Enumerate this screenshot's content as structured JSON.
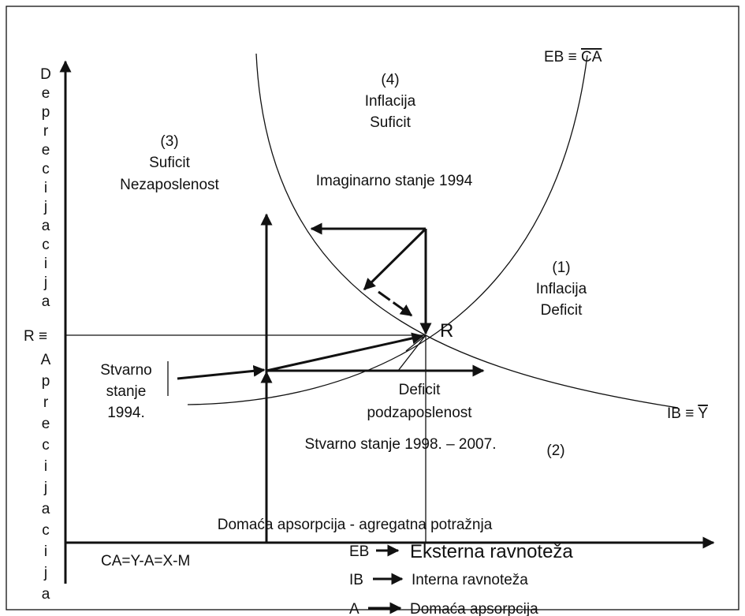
{
  "axes": {
    "y_top": "Deprecijacija",
    "y_mid": "R ≡",
    "y_bottom": "Aprecijacija",
    "x": "Domaća apsorpcija - agregatna potražnja"
  },
  "curves": {
    "eb_prefix": "EB ≡ ",
    "eb_over": "CA",
    "ib_prefix": "IB ≡ ",
    "ib_over": "Y"
  },
  "regions": [
    [
      "(4)",
      "Inflacija",
      "Suficit"
    ],
    [
      "(3)",
      "Suficit",
      "Nezaposlenost"
    ],
    [
      "(1)",
      "Inflacija",
      "Deficit"
    ],
    [
      "(2)"
    ],
    [
      "Deficit",
      "podzaposlenost"
    ]
  ],
  "labels": {
    "imaginary": "Imaginarno stanje 1994",
    "point": "R",
    "actual_1994": [
      "Stvarno",
      "stanje",
      "1994."
    ],
    "actual_later": "Stvarno stanje 1998. – 2007.",
    "identity": "CA=Y-A=X-M"
  },
  "legend": [
    {
      "key": "EB",
      "text": "Eksterna ravnoteža"
    },
    {
      "key": "IB",
      "text": "Interna ravnoteža"
    },
    {
      "key": "A",
      "text": "Domaća apsorpcija"
    }
  ]
}
